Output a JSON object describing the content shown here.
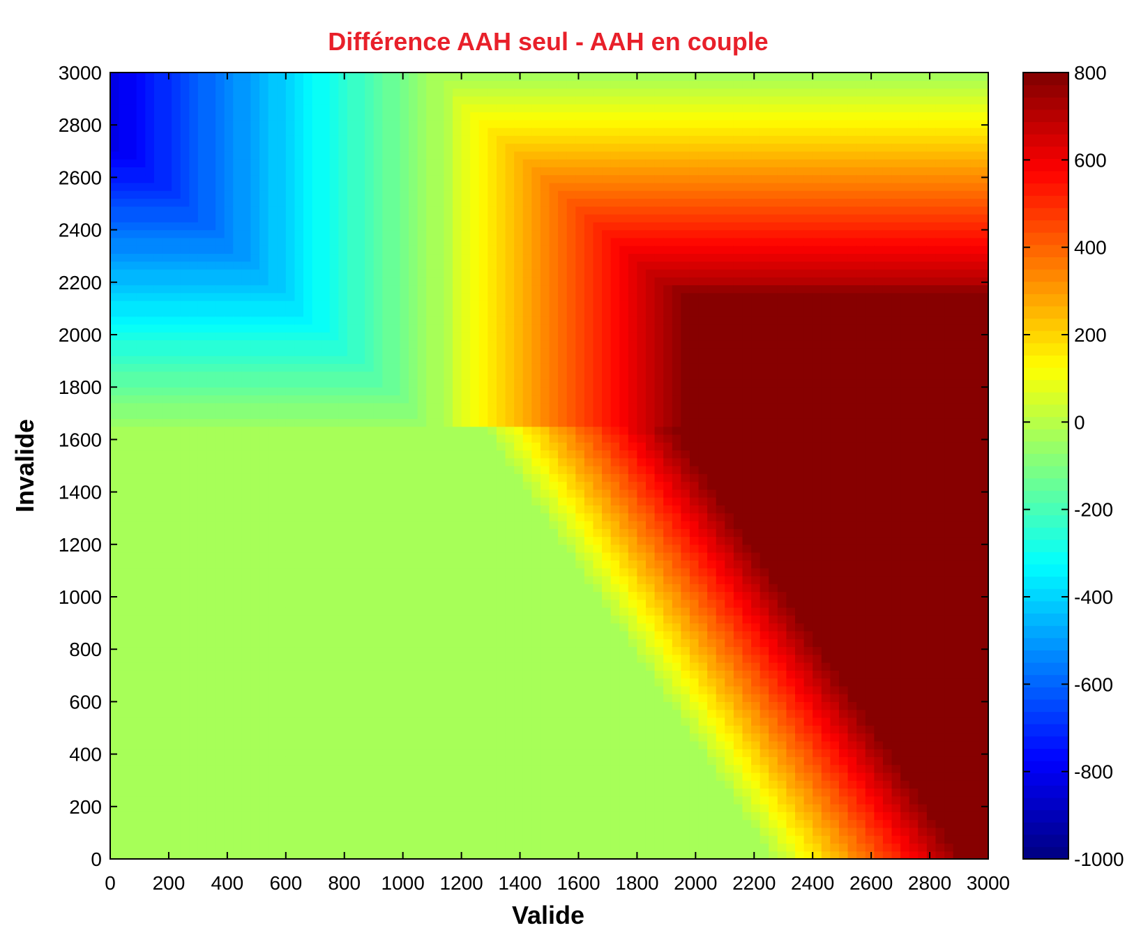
{
  "chart_data": {
    "type": "heatmap",
    "title": "Différence AAH seul - AAH en couple",
    "xlabel": "Valide",
    "ylabel": "Invalide",
    "xlim": [
      0,
      3000
    ],
    "ylim": [
      0,
      3000
    ],
    "x_ticks": [
      "0",
      "200",
      "400",
      "600",
      "800",
      "1000",
      "1200",
      "1400",
      "1600",
      "1800",
      "2000",
      "2200",
      "2400",
      "2600",
      "2800",
      "3000"
    ],
    "y_ticks": [
      "0",
      "200",
      "400",
      "600",
      "800",
      "1000",
      "1200",
      "1400",
      "1600",
      "1800",
      "2000",
      "2200",
      "2400",
      "2600",
      "2800",
      "3000"
    ],
    "colorbar": {
      "min": -1000,
      "max": 800,
      "ticks": [
        "-1000",
        "-800",
        "-600",
        "-400",
        "-200",
        "0",
        "200",
        "400",
        "600",
        "800"
      ],
      "colormap": "jet"
    },
    "grid": false,
    "field_description_values": {
      "upper_left_corner_min": -870,
      "lower_left_plateau": -40,
      "lower_right_plateau_max": 780
    }
  },
  "colors": {
    "title": "#e8202a"
  }
}
